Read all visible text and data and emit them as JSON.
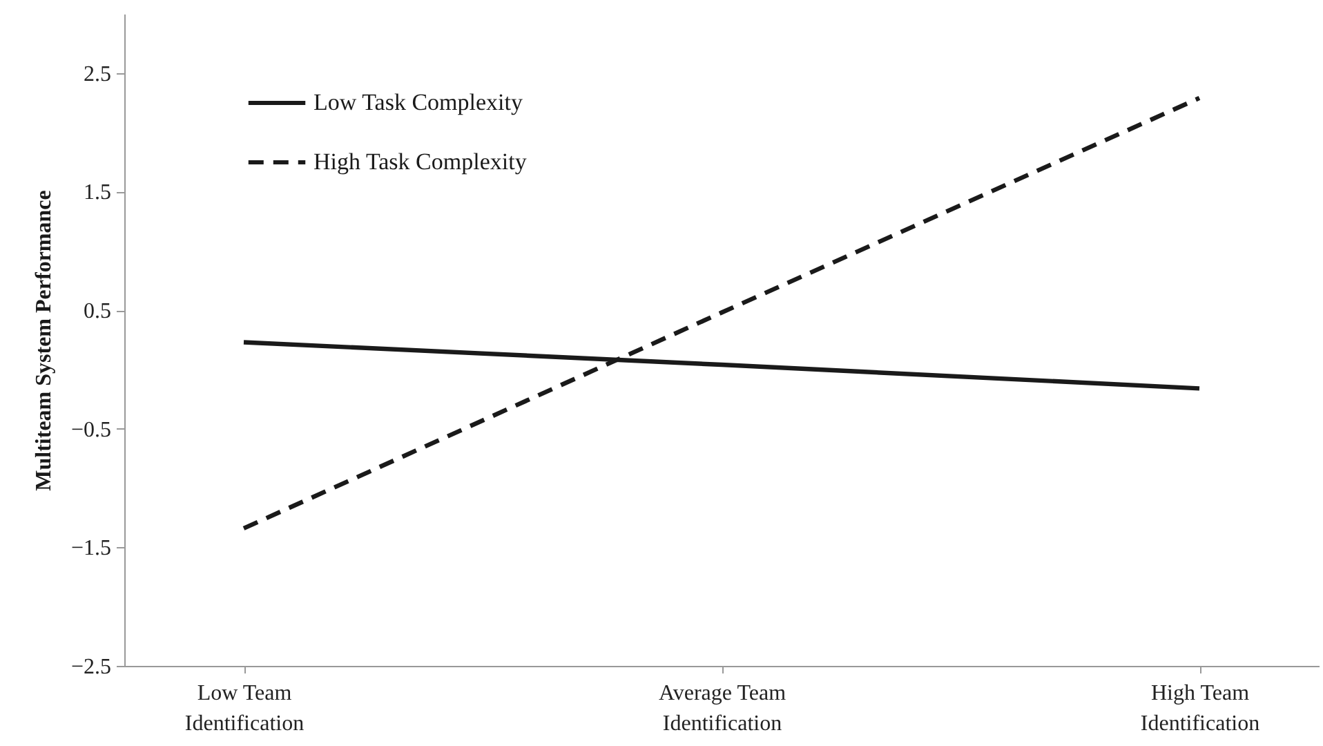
{
  "chart_data": {
    "type": "line",
    "ylabel": "Multiteam System Performance",
    "categories": [
      "Low Team Identification",
      "Average Team Identification",
      "High Team Identification"
    ],
    "series": [
      {
        "name": "Low Task Complexity",
        "color": "#1a1a1a",
        "line_style": "solid",
        "values": [
          0.23,
          0.04,
          -0.16
        ]
      },
      {
        "name": "High Task Complexity",
        "color": "#1a1a1a",
        "line_style": "dashed",
        "values": [
          -1.34,
          0.48,
          2.29
        ]
      }
    ],
    "ylim": [
      -2.5,
      3.0
    ],
    "yticks": [
      {
        "value": -2.5,
        "label": "−2.5"
      },
      {
        "value": -1.5,
        "label": "−1.5"
      },
      {
        "value": -0.5,
        "label": "−0.5"
      },
      0.5,
      1.5,
      2.5
    ],
    "legend": "top left",
    "marker": "none",
    "grid": false
  }
}
